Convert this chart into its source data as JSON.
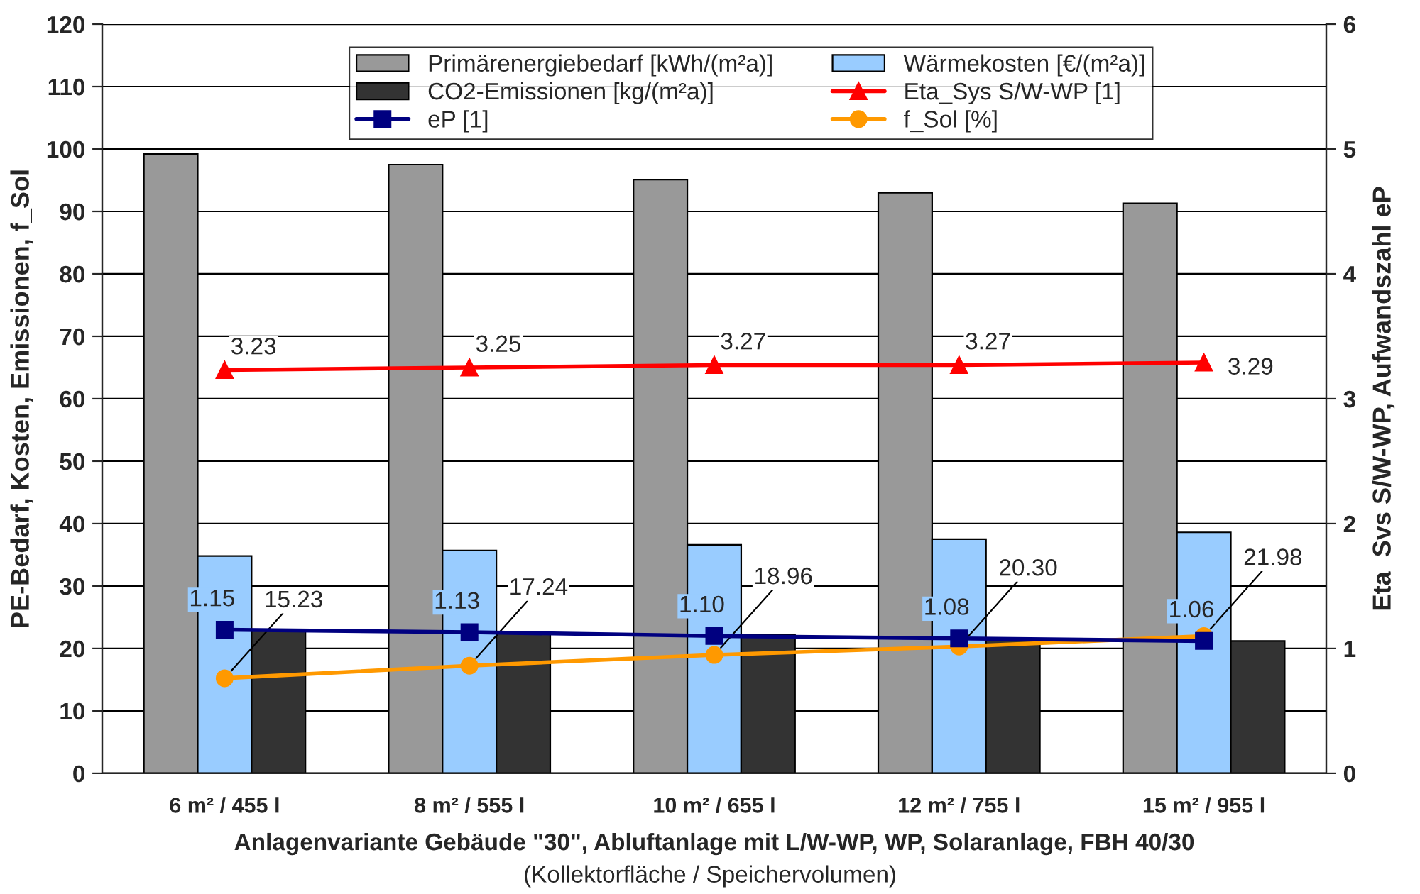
{
  "chart_data": {
    "type": "bar",
    "categories": [
      "6 m² / 455 l",
      "8 m² / 555 l",
      "10 m² / 655 l",
      "12 m² / 755 l",
      "15 m² / 955 l"
    ],
    "xlabel": "Anlagenvariante Gebäude \"30\", Abluftanlage mit L/W-WP, WP, Solaranlage, FBH 40/30",
    "annotations": [
      "(Kollektorfläche / Speichervolumen)"
    ],
    "ylabel": "PE-Bedarf, Kosten, Emissionen, f_Sol",
    "y2label": "Eta  Svs S/W-WP, Aufwandszahl eP",
    "ylim": [
      0,
      120
    ],
    "yticks": [
      0,
      10,
      20,
      30,
      40,
      50,
      60,
      70,
      80,
      90,
      100,
      110,
      120
    ],
    "y2lim": [
      0,
      6
    ],
    "y2ticks": [
      0,
      1,
      2,
      3,
      4,
      5,
      6
    ],
    "grid": "y",
    "legend": "top",
    "series": [
      {
        "name": "Primärenergiebedarf [kWh/(m²a)]",
        "color": "#999999",
        "values": [
          99.2,
          97.5,
          95.1,
          93.0,
          91.3
        ]
      },
      {
        "name": "Wärmekosten [€/(m²a)]",
        "color": "#99ccff",
        "values": [
          34.8,
          35.7,
          36.6,
          37.5,
          38.6
        ]
      },
      {
        "name": "CO2-Emissionen [kg/(m²a)]",
        "color": "#333333",
        "values": [
          23.0,
          22.6,
          22.2,
          21.5,
          21.2
        ]
      },
      {
        "name": "Eta_Sys S/W-WP [1]",
        "type": "line",
        "axis": "y2",
        "color": "#ff0000",
        "marker": "triangle",
        "values": [
          3.23,
          3.25,
          3.27,
          3.27,
          3.29
        ],
        "value_labels": [
          "3.23",
          "3.25",
          "3.27",
          "3.27",
          "3.29"
        ]
      },
      {
        "name": "eP [1]",
        "type": "line",
        "axis": "y2",
        "color": "#000080",
        "marker": "square",
        "values": [
          1.15,
          1.13,
          1.1,
          1.08,
          1.06
        ],
        "value_labels": [
          "1.15",
          "1.13",
          "1.10",
          "1.08",
          "1.06"
        ]
      },
      {
        "name": "f_Sol [%]",
        "type": "line",
        "color": "#ff9900",
        "marker": "circle",
        "values": [
          15.23,
          17.24,
          18.96,
          20.3,
          21.98
        ],
        "value_labels": [
          "15.23",
          "17.24",
          "18.96",
          "20.30",
          "21.98"
        ]
      }
    ]
  }
}
